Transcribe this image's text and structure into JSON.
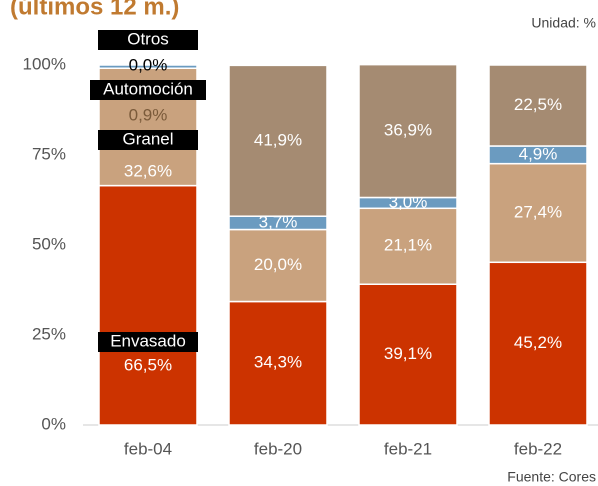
{
  "chart_data": {
    "type": "bar",
    "stacked": true,
    "title": "(últimos 12 m.)",
    "unit_label": "Unidad: %",
    "source": "Fuente: Cores",
    "categories": [
      "feb-04",
      "feb-20",
      "feb-21",
      "feb-22"
    ],
    "series": [
      {
        "name": "Envasado",
        "color": "#cc3300",
        "values": [
          66.5,
          34.3,
          39.1,
          45.2
        ],
        "value_labels": [
          "66,5%",
          "34,3%",
          "39,1%",
          "45,2%"
        ]
      },
      {
        "name": "Granel",
        "color": "#c9a27e",
        "values": [
          32.6,
          20.0,
          21.1,
          27.4
        ],
        "value_labels": [
          "32,6%",
          "20,0%",
          "21,1%",
          "27,4%"
        ]
      },
      {
        "name": "Automoción",
        "color": "#6b9bc0",
        "values": [
          0.9,
          3.7,
          3.0,
          4.9
        ],
        "value_labels": [
          "0,9%",
          "3,7%",
          "3,0%",
          "4,9%"
        ]
      },
      {
        "name": "Otros",
        "color": "#a58b72",
        "values": [
          0.0,
          41.9,
          36.9,
          22.5
        ],
        "value_labels": [
          "0,0%",
          "41,9%",
          "36,9%",
          "22,5%"
        ]
      }
    ],
    "ylim": [
      0,
      100
    ],
    "yticks": [
      {
        "value": 0,
        "label": "0%"
      },
      {
        "value": 25,
        "label": "25%"
      },
      {
        "value": 50,
        "label": "50%"
      },
      {
        "value": 75,
        "label": "75%"
      },
      {
        "value": 100,
        "label": "100%"
      }
    ],
    "grid": false
  }
}
